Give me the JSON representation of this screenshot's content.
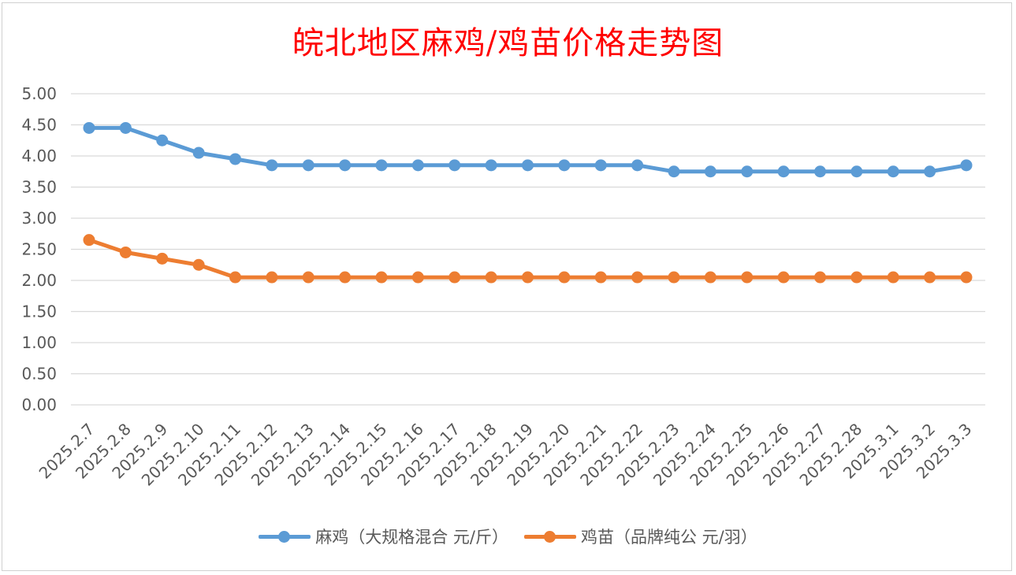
{
  "chart_data": {
    "type": "line",
    "title": "皖北地区麻鸡/鸡苗价格走势图",
    "categories": [
      "2025.2.7",
      "2025.2.8",
      "2025.2.9",
      "2025.2.10",
      "2025.2.11",
      "2025.2.12",
      "2025.2.13",
      "2025.2.14",
      "2025.2.15",
      "2025.2.16",
      "2025.2.17",
      "2025.2.18",
      "2025.2.19",
      "2025.2.20",
      "2025.2.21",
      "2025.2.22",
      "2025.2.23",
      "2025.2.24",
      "2025.2.25",
      "2025.2.26",
      "2025.2.27",
      "2025.2.28",
      "2025.3.1",
      "2025.3.2",
      "2025.3.3"
    ],
    "series": [
      {
        "name": "麻鸡（大规格混合 元/斤）",
        "color": "#5b9bd5",
        "values": [
          4.45,
          4.45,
          4.25,
          4.05,
          3.95,
          3.85,
          3.85,
          3.85,
          3.85,
          3.85,
          3.85,
          3.85,
          3.85,
          3.85,
          3.85,
          3.85,
          3.75,
          3.75,
          3.75,
          3.75,
          3.75,
          3.75,
          3.75,
          3.75,
          3.85
        ]
      },
      {
        "name": "鸡苗（品牌纯公 元/羽）",
        "color": "#ed7d31",
        "values": [
          2.65,
          2.45,
          2.35,
          2.25,
          2.05,
          2.05,
          2.05,
          2.05,
          2.05,
          2.05,
          2.05,
          2.05,
          2.05,
          2.05,
          2.05,
          2.05,
          2.05,
          2.05,
          2.05,
          2.05,
          2.05,
          2.05,
          2.05,
          2.05,
          2.05
        ]
      }
    ],
    "y_ticks": [
      "0.00",
      "0.50",
      "1.00",
      "1.50",
      "2.00",
      "2.50",
      "3.00",
      "3.50",
      "4.00",
      "4.50",
      "5.00"
    ],
    "ylim": [
      0,
      5
    ],
    "grid": true,
    "legend_position": "bottom"
  }
}
